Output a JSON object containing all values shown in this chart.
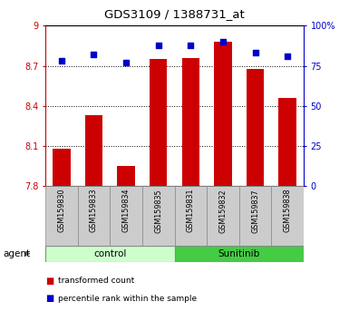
{
  "title": "GDS3109 / 1388731_at",
  "samples": [
    "GSM159830",
    "GSM159833",
    "GSM159834",
    "GSM159835",
    "GSM159831",
    "GSM159832",
    "GSM159837",
    "GSM159838"
  ],
  "bar_values": [
    8.08,
    8.33,
    7.95,
    8.75,
    8.76,
    8.88,
    8.68,
    8.46
  ],
  "dot_values": [
    78,
    82,
    77,
    88,
    88,
    90,
    83,
    81
  ],
  "ymin": 7.8,
  "ymax": 9.0,
  "y_ticks": [
    7.8,
    8.1,
    8.4,
    8.7,
    9.0
  ],
  "y_tick_labels": [
    "7.8",
    "8.1",
    "8.4",
    "8.7",
    "9"
  ],
  "y2_ticks": [
    0,
    25,
    50,
    75,
    100
  ],
  "y2_tick_labels": [
    "0",
    "25",
    "50",
    "75",
    "100%"
  ],
  "bar_color": "#cc0000",
  "dot_color": "#0000cc",
  "control_color": "#ccffcc",
  "sunitinib_color": "#44cc44",
  "sample_bg_color": "#cccccc",
  "legend_bar_label": "transformed count",
  "legend_dot_label": "percentile rank within the sample",
  "agent_label": "agent",
  "grid_lines": [
    8.1,
    8.4,
    8.7
  ]
}
